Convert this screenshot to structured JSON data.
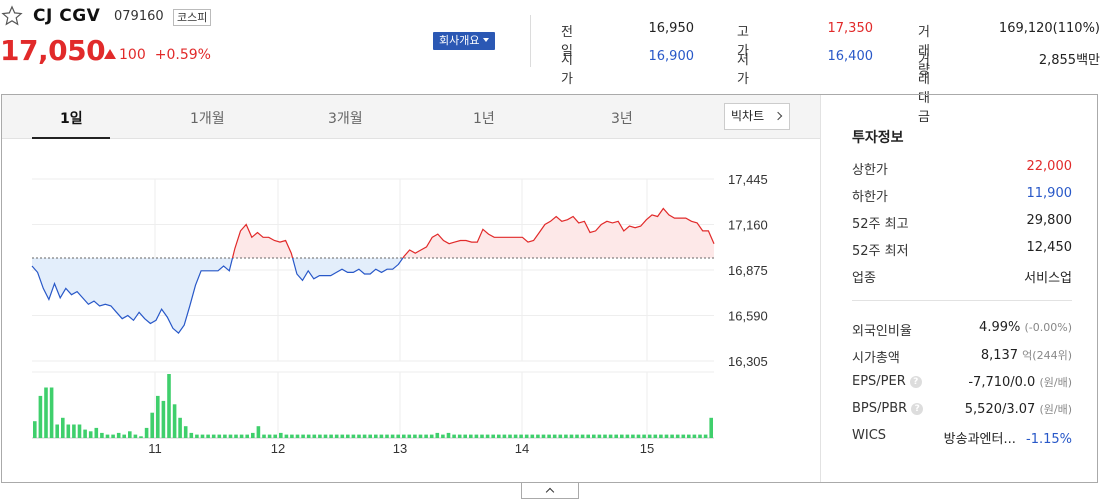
{
  "stock": {
    "name": "CJ CGV",
    "code": "079160",
    "market": "코스피",
    "price": "17,050",
    "change": "100",
    "change_pct": "+0.59%",
    "company_button": "회사개요"
  },
  "summary": [
    {
      "label": "전일",
      "value": "16,950",
      "color": "black"
    },
    {
      "label": "고가",
      "value": "17,350",
      "color": "red"
    },
    {
      "label": "거래량",
      "value": "169,120(110%)",
      "color": "black"
    },
    {
      "label": "시가",
      "value": "16,900",
      "color": "blue"
    },
    {
      "label": "저가",
      "value": "16,400",
      "color": "blue"
    },
    {
      "label": "거래대금",
      "value": "2,855백만",
      "color": "black"
    }
  ],
  "tabs": [
    "1일",
    "1개월",
    "3개월",
    "1년",
    "3년"
  ],
  "active_tab": "1일",
  "bigchart_button": "빅차트",
  "info": {
    "title": "투자정보",
    "rows": [
      {
        "label": "상한가",
        "value": "22,000",
        "color": "red"
      },
      {
        "label": "하한가",
        "value": "11,900",
        "color": "blue"
      },
      {
        "label": "52주 최고",
        "value": "29,800",
        "color": "black"
      },
      {
        "label": "52주 최저",
        "value": "12,450",
        "color": "black"
      },
      {
        "label": "업종",
        "value": "서비스업",
        "color": "black"
      }
    ],
    "rows2": [
      {
        "label": "외국인비율",
        "value": "4.99%",
        "sub": "(-0.00%)"
      },
      {
        "label": "시가총액",
        "value": "8,137",
        "unit": "억",
        "sub": "(244위)"
      },
      {
        "label": "EPS/PER",
        "value": "-7,710/0.0",
        "sub": "(원/배)",
        "help": "?"
      },
      {
        "label": "BPS/PBR",
        "value": "5,520/3.07",
        "sub": "(원/배)",
        "help": "?"
      },
      {
        "label": "WICS",
        "value": "방송과엔터...",
        "extra": "-1.15%"
      }
    ]
  },
  "colors": {
    "up": "#e12a2a",
    "down": "#2858c8",
    "volume": "#3fcf6c",
    "up_fill": "#fde8e8",
    "down_fill": "#e3eefb",
    "accent": "#2b58b4"
  },
  "chart_data": {
    "type": "line",
    "reference_price": 16950,
    "ylim": [
      16305,
      17445
    ],
    "y_ticks": [
      "17,445",
      "17,160",
      "16,875",
      "16,590",
      "16,305"
    ],
    "x_ticks": [
      "11",
      "12",
      "13",
      "14",
      "15"
    ],
    "price": [
      16900,
      16860,
      16760,
      16690,
      16790,
      16700,
      16760,
      16720,
      16740,
      16700,
      16660,
      16680,
      16650,
      16660,
      16650,
      16610,
      16570,
      16590,
      16560,
      16610,
      16570,
      16540,
      16560,
      16630,
      16580,
      16510,
      16480,
      16530,
      16650,
      16780,
      16870,
      16870,
      16870,
      16870,
      16900,
      16870,
      17010,
      17120,
      17160,
      17080,
      17110,
      17080,
      17080,
      17060,
      17050,
      17060,
      16980,
      16850,
      16810,
      16870,
      16820,
      16840,
      16840,
      16840,
      16860,
      16880,
      16860,
      16860,
      16880,
      16850,
      16850,
      16880,
      16860,
      16880,
      16880,
      16910,
      16960,
      17000,
      16980,
      17000,
      17020,
      17080,
      17100,
      17060,
      17040,
      17050,
      17060,
      17060,
      17050,
      17050,
      17130,
      17100,
      17080,
      17080,
      17080,
      17080,
      17080,
      17080,
      17050,
      17060,
      17110,
      17160,
      17180,
      17210,
      17180,
      17190,
      17210,
      17170,
      17180,
      17110,
      17120,
      17160,
      17180,
      17170,
      17180,
      17120,
      17150,
      17140,
      17150,
      17190,
      17220,
      17210,
      17260,
      17220,
      17200,
      17200,
      17200,
      17180,
      17170,
      17120,
      17120,
      17040
    ],
    "volume": [
      10,
      25,
      30,
      30,
      8,
      12,
      8,
      8,
      8,
      5,
      4,
      6,
      3,
      2,
      2,
      3,
      2,
      4,
      2,
      1,
      6,
      15,
      25,
      22,
      38,
      20,
      12,
      7,
      3,
      2,
      2,
      2,
      2,
      2,
      2,
      2,
      2,
      2,
      2,
      3,
      7,
      2,
      2,
      2,
      3,
      2,
      2,
      2,
      2,
      2,
      2,
      2,
      2,
      2,
      2,
      2,
      2,
      2,
      2,
      2,
      2,
      2,
      2,
      2,
      2,
      2,
      2,
      2,
      2,
      2,
      2,
      2,
      3,
      2,
      3,
      2,
      2,
      2,
      2,
      2,
      2,
      2,
      2,
      2,
      2,
      2,
      2,
      2,
      2,
      2,
      2,
      2,
      2,
      2,
      2,
      2,
      2,
      2,
      2,
      2,
      2,
      2,
      2,
      2,
      2,
      2,
      2,
      2,
      2,
      2,
      2,
      2,
      2,
      2,
      2,
      2,
      2,
      2,
      2,
      2,
      2,
      12
    ]
  }
}
